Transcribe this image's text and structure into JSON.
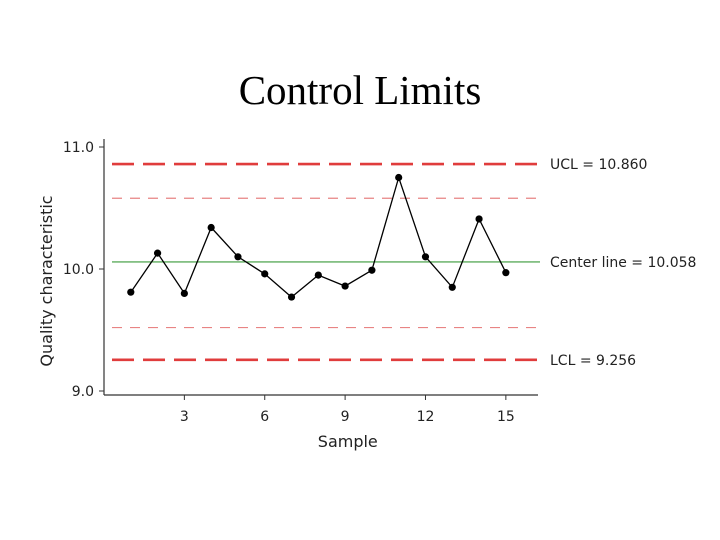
{
  "slide": {
    "title": "Control Limits"
  },
  "chart_data": {
    "type": "line",
    "title": "Control Limits",
    "xlabel": "Sample",
    "ylabel": "Quality characteristic",
    "xlim": [
      0,
      16.2
    ],
    "ylim": [
      9.0,
      11.0
    ],
    "x_ticks": [
      3,
      6,
      9,
      12,
      15
    ],
    "x_tick_labels": [
      "3",
      "6",
      "9",
      "12",
      "15"
    ],
    "y_ticks": [
      9.0,
      10.0,
      11.0
    ],
    "y_tick_labels": [
      "9.0",
      "10.0",
      "11.0"
    ],
    "grid": false,
    "series": [
      {
        "x": [
          1,
          2,
          3,
          4,
          5,
          6,
          7,
          8,
          9,
          10,
          11,
          12,
          13,
          14,
          15
        ],
        "values": [
          9.81,
          10.13,
          9.8,
          10.34,
          10.1,
          9.96,
          9.77,
          9.95,
          9.86,
          9.99,
          10.75,
          10.1,
          9.85,
          10.41,
          9.97
        ],
        "color": "#000000"
      }
    ],
    "reference_lines": [
      {
        "label": "UCL = 10.860",
        "value": 10.86,
        "style": "dashed",
        "color": "#e03c3c"
      },
      {
        "label": "",
        "value": 10.58,
        "style": "dashed-light",
        "color": "#e88484"
      },
      {
        "label": "Center line = 10.058",
        "value": 10.058,
        "style": "solid",
        "color": "#3a9a3a"
      },
      {
        "label": "",
        "value": 9.52,
        "style": "dashed-light",
        "color": "#e88484"
      },
      {
        "label": "LCL = 9.256",
        "value": 9.256,
        "style": "dashed",
        "color": "#e03c3c"
      }
    ]
  }
}
